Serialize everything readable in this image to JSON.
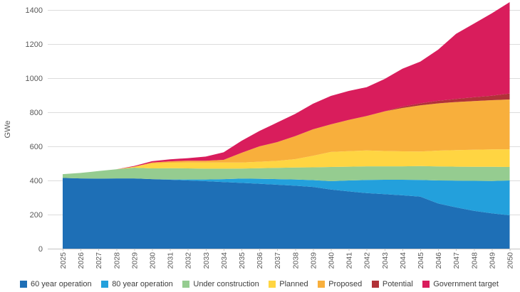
{
  "chart_data": {
    "type": "area",
    "stacked": true,
    "title": "",
    "xlabel": "",
    "ylabel": "GWe",
    "ylim": [
      0,
      1450
    ],
    "grid": true,
    "legend_position": "bottom",
    "y_ticks": [
      0,
      200,
      400,
      600,
      800,
      1000,
      1200,
      1400
    ],
    "x": [
      2025,
      2026,
      2027,
      2028,
      2029,
      2030,
      2031,
      2032,
      2033,
      2034,
      2035,
      2036,
      2037,
      2038,
      2039,
      2040,
      2041,
      2042,
      2043,
      2044,
      2045,
      2046,
      2047,
      2048,
      2049,
      2050
    ],
    "series": [
      {
        "name": "60 year operation",
        "color": "#1E6FB6",
        "values": [
          415,
          412,
          411,
          412,
          412,
          408,
          404,
          400,
          396,
          391,
          386,
          381,
          375,
          369,
          362,
          347,
          336,
          326,
          320,
          313,
          305,
          265,
          242,
          222,
          207,
          196
        ]
      },
      {
        "name": "80 year operation",
        "color": "#23A0DC",
        "values": [
          0,
          0,
          0,
          0,
          0,
          0,
          2,
          6,
          10,
          17,
          25,
          29,
          33,
          37,
          40,
          49,
          64,
          77,
          84,
          91,
          98,
          135,
          157,
          176,
          190,
          204
        ]
      },
      {
        "name": "Under construction",
        "color": "#95CC90",
        "values": [
          22,
          32,
          44,
          54,
          63,
          63,
          66,
          65,
          63,
          61,
          59,
          62,
          66,
          70,
          75,
          83,
          81,
          80,
          79,
          79,
          81,
          82,
          82,
          82,
          83,
          79
        ]
      },
      {
        "name": "Planned",
        "color": "#FFD542",
        "values": [
          0,
          0,
          0,
          0,
          6,
          29,
          32,
          34,
          36,
          36,
          35,
          38,
          41,
          49,
          68,
          88,
          91,
          93,
          90,
          88,
          86,
          93,
          97,
          100,
          102,
          104
        ]
      },
      {
        "name": "Proposed",
        "color": "#F8AF3C",
        "values": [
          0,
          0,
          0,
          0,
          0,
          5,
          8,
          11,
          11,
          16,
          57,
          90,
          110,
          135,
          155,
          162,
          183,
          202,
          232,
          254,
          271,
          277,
          282,
          286,
          289,
          292
        ]
      },
      {
        "name": "Potential",
        "color": "#B13238",
        "values": [
          0,
          0,
          0,
          0,
          0,
          0,
          0,
          0,
          0,
          0,
          0,
          0,
          0,
          0,
          0,
          0,
          0,
          0,
          0,
          8,
          11,
          15,
          18,
          22,
          26,
          35
        ]
      },
      {
        "name": "Government target",
        "color": "#D91D5C",
        "values": [
          0,
          0,
          0,
          0,
          4,
          8,
          12,
          15,
          24,
          44,
          70,
          90,
          115,
          130,
          150,
          167,
          170,
          169,
          190,
          222,
          245,
          300,
          382,
          432,
          483,
          536
        ]
      }
    ]
  }
}
